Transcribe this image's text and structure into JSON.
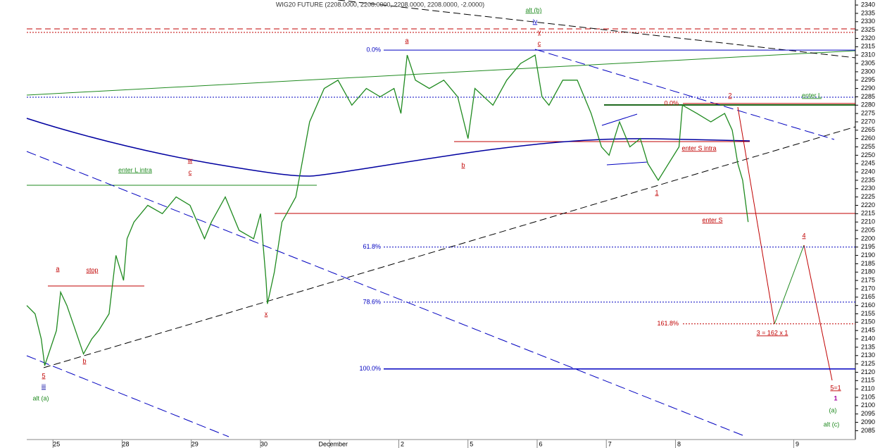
{
  "chart_data": {
    "type": "line",
    "title": "WIG20 FUTURE (2208.0000, 2208.0000, 2208.0000, 2208.0000, -2.0000)",
    "x": [
      -0.43,
      -0.31,
      -0.22,
      -0.17,
      0,
      0.06,
      0.15,
      0.25,
      0.39,
      0.51,
      0.61,
      0.76,
      0.86,
      0.97,
      1.02,
      1.12,
      1.32,
      1.53,
      1.73,
      1.93,
      2.14,
      2.24,
      2.44,
      2.64,
      2.85,
      2.95,
      3.03,
      3.05,
      3.15,
      3.26,
      3.46,
      3.66,
      3.87,
      4.07,
      4.27,
      4.48,
      4.68,
      4.88,
      4.98,
      5.07,
      5.19,
      5.39,
      5.6,
      5.8,
      5.95,
      6.05,
      6.31,
      6.51,
      6.71,
      6.92,
      7.02,
      7.12,
      7.32,
      7.53,
      7.73,
      7.88,
      7.99,
      8.14,
      8.29,
      8.44,
      8.55,
      8.7,
      8.85,
      9.0,
      9.05,
      9.26,
      9.46,
      9.66,
      9.77,
      9.85,
      9.92,
      10.0
    ],
    "series": [
      {
        "name": "WIG20 FUTURE",
        "color": "#1f8a1f",
        "values": [
          2160,
          2155,
          2140,
          2124,
          2145,
          2168,
          2160,
          2148,
          2131,
          2140,
          2145,
          2155,
          2190,
          2175,
          2200,
          2210,
          2220,
          2215,
          2225,
          2220,
          2200,
          2210,
          2225,
          2205,
          2200,
          2215,
          2175,
          2161,
          2180,
          2210,
          2225,
          2270,
          2290,
          2295,
          2280,
          2290,
          2285,
          2290,
          2275,
          2310,
          2295,
          2290,
          2295,
          2285,
          2260,
          2290,
          2280,
          2295,
          2305,
          2310,
          2285,
          2280,
          2295,
          2295,
          2275,
          2255,
          2250,
          2270,
          2255,
          2260,
          2245,
          2235,
          2245,
          2255,
          2280,
          2275,
          2270,
          2275,
          2265,
          2245,
          2235,
          2210
        ]
      }
    ],
    "xlim": [
      -0.43,
      11.55
    ],
    "xticks": [
      {
        "value": 0,
        "label": "25"
      },
      {
        "value": 1,
        "label": "28"
      },
      {
        "value": 2,
        "label": "29"
      },
      {
        "value": 3,
        "label": "30"
      },
      {
        "value": 4,
        "label": "December"
      },
      {
        "value": 5,
        "label": "2"
      },
      {
        "value": 6,
        "label": "5"
      },
      {
        "value": 7,
        "label": "6"
      },
      {
        "value": 8,
        "label": "7"
      },
      {
        "value": 9,
        "label": "8"
      },
      {
        "value": 10.71,
        "label": "9"
      }
    ],
    "ylim": [
      2078,
      2343
    ],
    "yticks": [
      2085,
      2090,
      2095,
      2100,
      2105,
      2110,
      2115,
      2120,
      2125,
      2130,
      2135,
      2140,
      2145,
      2150,
      2155,
      2160,
      2165,
      2170,
      2175,
      2180,
      2185,
      2190,
      2195,
      2200,
      2205,
      2210,
      2215,
      2220,
      2225,
      2230,
      2235,
      2240,
      2245,
      2250,
      2255,
      2260,
      2265,
      2270,
      2275,
      2280,
      2285,
      2290,
      2295,
      2300,
      2305,
      2310,
      2315,
      2320,
      2325,
      2330,
      2335,
      2340
    ],
    "fib_blue": [
      {
        "value": 2313,
        "label": "0.0%"
      },
      {
        "value": 2195,
        "label": "61.8%"
      },
      {
        "value": 2162,
        "label": "78.6%"
      },
      {
        "value": 2122,
        "label": "100.0%"
      }
    ],
    "fib_red": [
      {
        "value": 2281,
        "label": "0.0%"
      },
      {
        "value": 2149,
        "label": "161.8%"
      }
    ],
    "annotations": [
      "a",
      "iv",
      "alt (b)",
      "y",
      "c",
      "b",
      "w",
      "c",
      "enter L intra",
      "a",
      "stop",
      "b",
      "x",
      "5",
      "iii",
      "alt (a)",
      "1",
      "enter S intra",
      "enter S",
      "2",
      "enter L",
      "4",
      "3 = 162 x 1",
      "5=1",
      "1",
      "(a)",
      "alt (c)"
    ]
  }
}
